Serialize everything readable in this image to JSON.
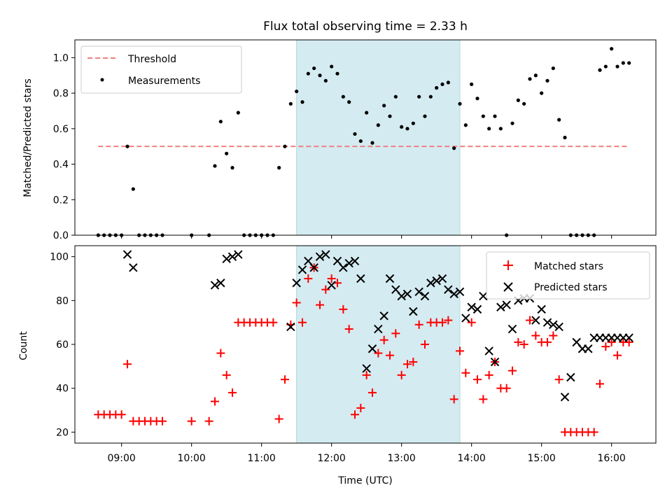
{
  "chart_data": [
    {
      "type": "scatter",
      "title": "Flux total observing time = 2.33 h",
      "xlabel": "",
      "ylabel": "Matched/Predicted stars",
      "ylim": [
        0,
        1.1
      ],
      "yticks": [
        "0.0",
        "0.2",
        "0.4",
        "0.6",
        "0.8",
        "1.0"
      ],
      "ytick_values": [
        0,
        0.2,
        0.4,
        0.6,
        0.8,
        1.0
      ],
      "xlim": [
        "08:20",
        "16:38"
      ],
      "highlight_span": [
        "11:30",
        "13:50"
      ],
      "highlight_color": "#d4ebf1",
      "legend_position": "top-left",
      "threshold": {
        "name": "Threshold",
        "y": 0.5,
        "x_range": [
          "08:40",
          "16:15"
        ],
        "color": "#f08080"
      },
      "series": [
        {
          "name": "Measurements",
          "color": "#000000",
          "x": [
            "08:40",
            "08:45",
            "08:50",
            "08:55",
            "09:00",
            "09:05",
            "09:10",
            "09:15",
            "09:20",
            "09:25",
            "09:30",
            "09:35",
            "10:00",
            "10:15",
            "10:20",
            "10:25",
            "10:30",
            "10:35",
            "10:40",
            "10:45",
            "10:50",
            "10:55",
            "11:00",
            "11:05",
            "11:10",
            "11:15",
            "11:20",
            "11:25",
            "11:30",
            "11:35",
            "11:40",
            "11:45",
            "11:50",
            "11:55",
            "12:00",
            "12:05",
            "12:10",
            "12:15",
            "12:20",
            "12:25",
            "12:30",
            "12:35",
            "12:40",
            "12:45",
            "12:50",
            "12:55",
            "13:00",
            "13:05",
            "13:10",
            "13:15",
            "13:20",
            "13:25",
            "13:30",
            "13:35",
            "13:40",
            "13:45",
            "13:50",
            "13:55",
            "14:00",
            "14:05",
            "14:10",
            "14:15",
            "14:20",
            "14:25",
            "14:30",
            "14:35",
            "14:40",
            "14:45",
            "14:50",
            "14:55",
            "15:00",
            "15:05",
            "15:10",
            "15:15",
            "15:20",
            "15:25",
            "15:30",
            "15:35",
            "15:40",
            "15:45",
            "15:50",
            "15:55",
            "16:00",
            "16:05",
            "16:10",
            "16:15"
          ],
          "y": [
            0,
            0,
            0,
            0,
            0,
            0.5,
            0.26,
            0,
            0,
            0,
            0,
            0,
            0,
            0,
            0.39,
            0.64,
            0.46,
            0.38,
            0.69,
            0,
            0,
            0,
            0,
            0,
            0,
            0.38,
            0.5,
            0.74,
            0.81,
            0.75,
            0.91,
            0.94,
            0.9,
            0.87,
            0.95,
            0.91,
            0.78,
            0.75,
            0.57,
            0.53,
            0.69,
            0.52,
            0.62,
            0.73,
            0.67,
            0.78,
            0.61,
            0.6,
            0.63,
            0.78,
            0.67,
            0.78,
            0.83,
            0.85,
            0.86,
            0.49,
            0.74,
            0.62,
            0.85,
            0.77,
            0.67,
            0.6,
            0.67,
            0.6,
            0,
            0.63,
            0.76,
            0.74,
            0.88,
            0.9,
            0.8,
            0.87,
            0.94,
            0.65,
            0.55,
            0,
            0,
            0,
            0,
            0,
            0.93,
            0.95,
            1.05,
            0.95,
            0.97,
            0.97
          ],
          "x_points": [
            "08:40",
            "08:45",
            "08:50",
            "08:55",
            "09:00",
            "09:05",
            "09:10",
            "09:15",
            "09:20",
            "09:25",
            "09:30",
            "09:35",
            "10:00",
            "10:15",
            "10:20",
            "10:25",
            "10:30",
            "10:35",
            "10:40",
            "10:45",
            "10:50",
            "10:55",
            "11:00",
            "11:05",
            "11:10",
            "11:15",
            "11:20",
            "11:25",
            "11:30",
            "11:35",
            "11:40",
            "11:45",
            "11:50",
            "11:55",
            "12:00",
            "12:05",
            "12:10",
            "12:15",
            "12:20",
            "12:25",
            "12:30",
            "12:35",
            "12:40",
            "12:45",
            "12:50",
            "12:55",
            "13:00",
            "13:05",
            "13:10",
            "13:15",
            "13:20",
            "13:25",
            "13:30",
            "13:35",
            "13:40",
            "13:45",
            "13:50",
            "13:55",
            "14:00",
            "14:05",
            "14:10",
            "14:15",
            "14:20",
            "14:25",
            "14:30",
            "14:35",
            "14:40",
            "14:45",
            "14:50",
            "14:55",
            "15:00",
            "15:05",
            "15:10",
            "15:15",
            "15:20",
            "15:25",
            "15:30",
            "15:35",
            "15:40",
            "15:45",
            "15:50",
            "15:55",
            "16:00",
            "16:05",
            "16:10",
            "16:15"
          ]
        }
      ]
    },
    {
      "type": "scatter",
      "title": "",
      "xlabel": "Time (UTC)",
      "ylabel": "Count",
      "ylim": [
        15,
        105
      ],
      "yticks": [
        "20",
        "40",
        "60",
        "80",
        "100"
      ],
      "ytick_values": [
        20,
        40,
        60,
        80,
        100
      ],
      "xlim": [
        "08:20",
        "16:38"
      ],
      "xticks": [
        "09:00",
        "10:00",
        "11:00",
        "12:00",
        "13:00",
        "14:00",
        "15:00",
        "16:00"
      ],
      "highlight_span": [
        "11:30",
        "13:50"
      ],
      "highlight_color": "#d4ebf1",
      "legend_position": "top-right",
      "series": [
        {
          "name": "Matched stars",
          "color": "#ff0000",
          "marker": "plus",
          "x": [
            "08:40",
            "08:45",
            "08:50",
            "08:55",
            "09:00",
            "09:05",
            "09:10",
            "09:15",
            "09:20",
            "09:25",
            "09:30",
            "09:35",
            "10:00",
            "10:15",
            "10:20",
            "10:25",
            "10:30",
            "10:35",
            "10:40",
            "10:45",
            "10:50",
            "10:55",
            "11:00",
            "11:05",
            "11:10",
            "11:15",
            "11:20",
            "11:25",
            "11:30",
            "11:35",
            "11:40",
            "11:45",
            "11:50",
            "11:55",
            "12:00",
            "12:05",
            "12:10",
            "12:15",
            "12:20",
            "12:25",
            "12:30",
            "12:35",
            "12:40",
            "12:45",
            "12:50",
            "12:55",
            "13:00",
            "13:05",
            "13:10",
            "13:15",
            "13:20",
            "13:25",
            "13:30",
            "13:35",
            "13:40",
            "13:45",
            "13:50",
            "13:55",
            "14:00",
            "14:05",
            "14:10",
            "14:15",
            "14:20",
            "14:25",
            "14:30",
            "14:35",
            "14:40",
            "14:45",
            "14:50",
            "14:55",
            "15:00",
            "15:05",
            "15:10",
            "15:15",
            "15:20",
            "15:25",
            "15:30",
            "15:35",
            "15:40",
            "15:45",
            "15:50",
            "15:55",
            "16:00",
            "16:05",
            "16:10",
            "16:15"
          ],
          "y": [
            28,
            28,
            28,
            28,
            28,
            51,
            25,
            25,
            25,
            25,
            25,
            25,
            25,
            25,
            34,
            56,
            46,
            38,
            70,
            70,
            70,
            70,
            70,
            70,
            70,
            26,
            44,
            69,
            79,
            70,
            90,
            95,
            78,
            85,
            90,
            88,
            76,
            67,
            28,
            31,
            46,
            38,
            56,
            62,
            55,
            65,
            46,
            51,
            52,
            69,
            60,
            70,
            70,
            70,
            71,
            35,
            57,
            47,
            70,
            44,
            35,
            46,
            52,
            40,
            40,
            48,
            61,
            60,
            71,
            64,
            61,
            61,
            64,
            44,
            20,
            20,
            20,
            20,
            20,
            20,
            42,
            59,
            61,
            55,
            61,
            61
          ]
        },
        {
          "name": "Predicted stars",
          "color": "#000000",
          "marker": "x",
          "x": [
            "09:05",
            "09:10",
            "10:20",
            "10:25",
            "10:30",
            "10:35",
            "10:40",
            "11:25",
            "11:30",
            "11:35",
            "11:40",
            "11:45",
            "11:50",
            "11:55",
            "12:00",
            "12:05",
            "12:10",
            "12:15",
            "12:20",
            "12:25",
            "12:30",
            "12:35",
            "12:40",
            "12:45",
            "12:50",
            "12:55",
            "13:00",
            "13:05",
            "13:10",
            "13:15",
            "13:20",
            "13:25",
            "13:30",
            "13:35",
            "13:40",
            "13:45",
            "13:50",
            "13:55",
            "14:00",
            "14:05",
            "14:10",
            "14:15",
            "14:20",
            "14:25",
            "14:30",
            "14:35",
            "14:40",
            "14:45",
            "14:50",
            "14:55",
            "15:00",
            "15:05",
            "15:10",
            "15:15",
            "15:20",
            "15:25",
            "15:30",
            "15:35",
            "15:40",
            "15:45",
            "15:50",
            "15:55",
            "16:00",
            "16:05",
            "16:10",
            "16:15"
          ],
          "y": [
            101,
            95,
            87,
            88,
            99,
            100,
            101,
            68,
            88,
            94,
            98,
            95,
            100,
            101,
            87,
            98,
            95,
            97,
            98,
            90,
            49,
            58,
            67,
            73,
            90,
            85,
            82,
            83,
            75,
            84,
            82,
            88,
            89,
            90,
            85,
            83,
            84,
            72,
            77,
            76,
            82,
            57,
            52,
            77,
            78,
            67,
            80,
            81,
            81,
            71,
            76,
            70,
            69,
            68,
            36,
            45,
            61,
            58,
            58,
            63,
            63,
            63,
            63,
            63,
            63,
            63
          ]
        }
      ]
    }
  ],
  "legend_top": {
    "threshold_label": "Threshold",
    "measurements_label": "Measurements"
  },
  "legend_bottom": {
    "matched_label": "Matched stars",
    "predicted_label": "Predicted stars"
  }
}
